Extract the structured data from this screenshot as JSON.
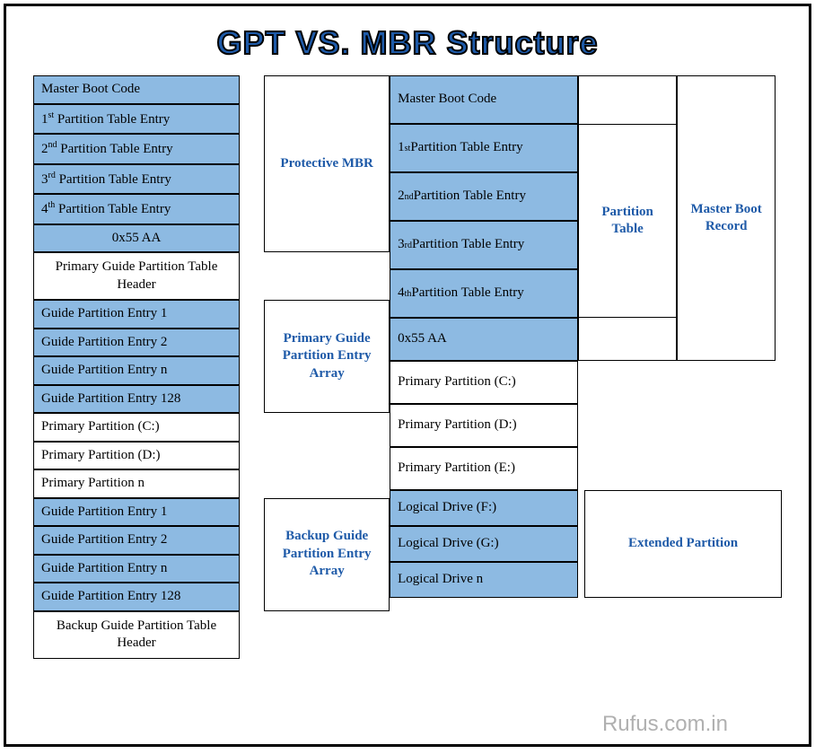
{
  "title": "GPT VS. MBR Structure",
  "watermark": "Rufus.com.in",
  "colors": {
    "blue_cell": "#8dbae2",
    "label_text": "#1e5aa8",
    "border": "#000000",
    "bg": "#ffffff"
  },
  "gpt": {
    "sections": [
      {
        "label": "Protective MBR",
        "rows_html": [
          "Master Boot Code",
          "1<sup>st</sup> Partition Table Entry",
          "2<sup>nd</sup> Partition Table Entry",
          "3<sup>rd</sup> Partition Table Entry",
          "4<sup>th</sup> Partition Table Entry",
          "0x55 AA"
        ],
        "blue": true,
        "center_last": true
      },
      {
        "label": "",
        "rows_html": [
          "Primary Guide Partition Table Header"
        ],
        "blue": false,
        "center": true
      },
      {
        "label": "Primary Guide Partition Entry Array",
        "rows_html": [
          "Guide Partition Entry 1",
          "Guide Partition Entry 2",
          "Guide Partition Entry n",
          "Guide Partition Entry 128"
        ],
        "blue": true
      },
      {
        "label": "",
        "rows_html": [
          "Primary Partition (C:)",
          "Primary Partition (D:)",
          "Primary Partition n"
        ],
        "blue": false
      },
      {
        "label": "Backup Guide Partition Entry Array",
        "rows_html": [
          "Guide Partition Entry 1",
          "Guide Partition Entry 2",
          "Guide Partition Entry n",
          "Guide Partition Entry 128"
        ],
        "blue": true
      },
      {
        "label": "",
        "rows_html": [
          "Backup Guide Partition Table Header"
        ],
        "blue": false,
        "center": true
      }
    ]
  },
  "mbr": {
    "top_label": "Master Boot Record",
    "table_label": "Partition Table",
    "boot_code": "Master Boot Code",
    "entries_html": [
      "1<sup>st</sup> Partition Table Entry",
      "2<sup>nd</sup> Partition Table Entry",
      "3<sup>rd</sup> Partition Table Entry",
      "4<sup>th</sup> Partition Table Entry"
    ],
    "sig": "0x55 AA",
    "primary": [
      "Primary Partition (C:)",
      "Primary Partition (D:)",
      "Primary Partition (E:)"
    ],
    "ext_label": "Extended Partition",
    "logical": [
      "Logical Drive (F:)",
      "Logical Drive (G:)",
      "Logical Drive n"
    ]
  }
}
